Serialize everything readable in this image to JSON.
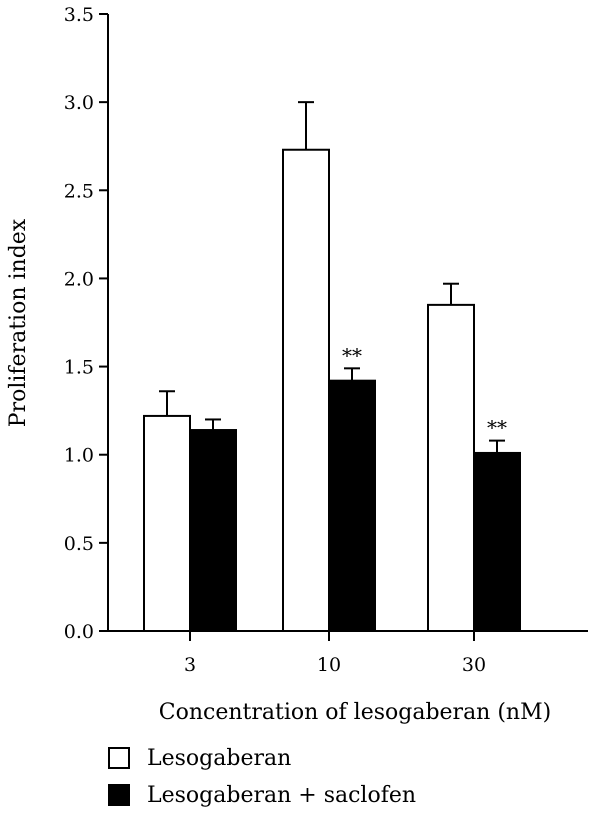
{
  "chart_data": {
    "type": "bar",
    "title": "",
    "xlabel": "Concentration of lesogaberan (nM)",
    "ylabel": "Proliferation index",
    "ylim": [
      0,
      3.5
    ],
    "yticks": [
      "0.0",
      "0.5",
      "1.0",
      "1.5",
      "2.0",
      "2.5",
      "3.0",
      "3.5"
    ],
    "categories": [
      "3",
      "10",
      "30"
    ],
    "series": [
      {
        "name": "Lesogaberan",
        "fill": "#ffffff",
        "values": [
          1.22,
          2.73,
          1.85
        ],
        "error": [
          0.14,
          0.27,
          0.12
        ],
        "annotations": [
          "",
          "",
          ""
        ]
      },
      {
        "name": "Lesogaberan + saclofen",
        "fill": "#000000",
        "values": [
          1.14,
          1.42,
          1.01
        ],
        "error": [
          0.06,
          0.07,
          0.07
        ],
        "annotations": [
          "",
          "**",
          "**"
        ]
      }
    ],
    "grid": false,
    "legend_position": "bottom-left"
  }
}
